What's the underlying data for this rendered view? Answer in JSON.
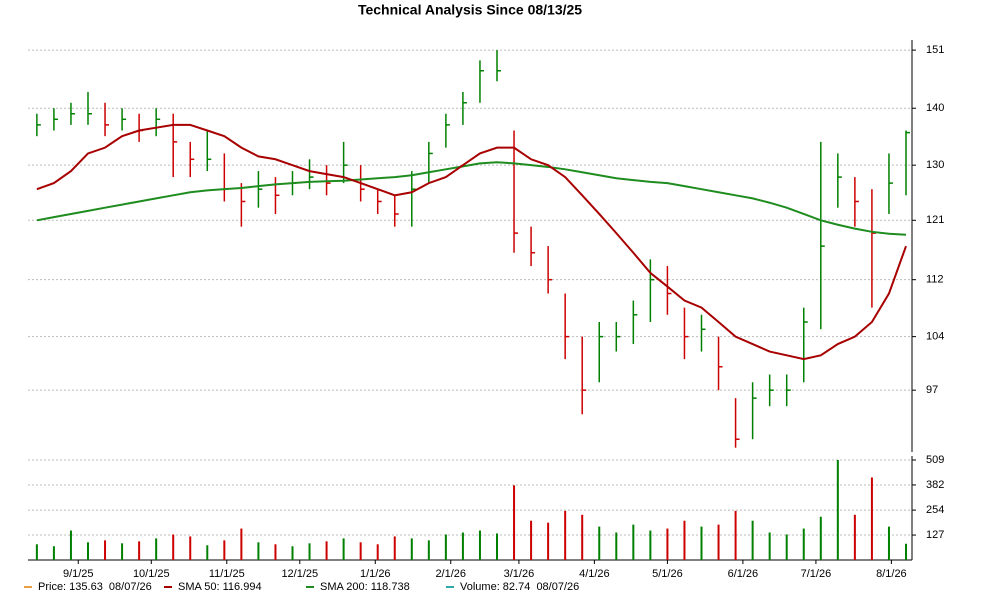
{
  "chart_data": {
    "type": "ohlc",
    "title": "Technical Analysis Since 08/13/25",
    "x": [
      "8/15/25",
      "8/22/25",
      "8/29/25",
      "9/5/25",
      "9/12/25",
      "9/19/25",
      "9/26/25",
      "10/3/25",
      "10/10/25",
      "10/17/25",
      "10/24/25",
      "10/31/25",
      "11/7/25",
      "11/14/25",
      "11/21/25",
      "11/28/25",
      "12/5/25",
      "12/12/25",
      "12/19/25",
      "12/26/25",
      "1/2/26",
      "1/9/26",
      "1/16/26",
      "1/23/26",
      "1/30/26",
      "2/6/26",
      "2/13/26",
      "2/20/26",
      "2/27/26",
      "3/6/26",
      "3/13/26",
      "3/20/26",
      "3/27/26",
      "4/3/26",
      "4/10/26",
      "4/17/26",
      "4/24/26",
      "5/1/26",
      "5/8/26",
      "5/15/26",
      "5/22/26",
      "5/29/26",
      "6/5/26",
      "6/12/26",
      "6/19/26",
      "6/26/26",
      "7/3/26",
      "7/10/26",
      "7/17/26",
      "7/24/26",
      "7/31/26",
      "8/7/26"
    ],
    "high": [
      139,
      140,
      141,
      143,
      141,
      140,
      139,
      140,
      139,
      134,
      136,
      132,
      127,
      129,
      128,
      129,
      131,
      130,
      134,
      130,
      126,
      125,
      129,
      134,
      139,
      143,
      149,
      151,
      136,
      120,
      117,
      110,
      104,
      106,
      106,
      109,
      115,
      114,
      108,
      107,
      104,
      96,
      98,
      99,
      99,
      108,
      134,
      132,
      128,
      126,
      132,
      136
    ],
    "low": [
      135,
      136,
      137,
      137,
      135,
      136,
      134,
      135,
      128,
      128,
      129,
      124,
      120,
      123,
      122,
      125,
      126,
      125,
      127,
      124,
      122,
      120,
      120,
      127,
      133,
      137,
      141,
      145,
      116,
      114,
      110,
      101,
      94,
      98,
      102,
      103,
      106,
      107,
      101,
      102,
      97,
      90,
      91,
      95,
      95,
      98,
      105,
      123,
      120,
      108,
      122,
      125
    ],
    "close": [
      137,
      138,
      139,
      139,
      137,
      138,
      136,
      138,
      134,
      131,
      131,
      126,
      124,
      126,
      125,
      127,
      128,
      127,
      130,
      126,
      124,
      122,
      126,
      132,
      137,
      141,
      147,
      147,
      119,
      116,
      112,
      104,
      97,
      104,
      104,
      107,
      112,
      110,
      104,
      105,
      100,
      91,
      96,
      97,
      97,
      106,
      117,
      128,
      124,
      119,
      127,
      135.63
    ],
    "volume": [
      80,
      70,
      150,
      90,
      100,
      85,
      95,
      110,
      130,
      120,
      75,
      100,
      160,
      90,
      80,
      70,
      85,
      95,
      110,
      90,
      80,
      120,
      110,
      100,
      130,
      140,
      150,
      135,
      380,
      200,
      190,
      250,
      230,
      170,
      140,
      180,
      150,
      160,
      200,
      170,
      180,
      250,
      200,
      140,
      130,
      160,
      220,
      509,
      230,
      420,
      170,
      82.74
    ],
    "sma50": {
      "color": "#a80000",
      "values": [
        126,
        127,
        129,
        132,
        133,
        135,
        136,
        136.5,
        137,
        137,
        136,
        135,
        133,
        131.5,
        131,
        130,
        129,
        128.5,
        128,
        127,
        126,
        125,
        125.5,
        127,
        128,
        130,
        132,
        133,
        133,
        131,
        130,
        128,
        125,
        122,
        119,
        116,
        113,
        111,
        109,
        108,
        106,
        104,
        103,
        102,
        101.5,
        101,
        101.5,
        103,
        104,
        106,
        110,
        116.994
      ]
    },
    "sma200": {
      "color": "#1e8c1e",
      "values": [
        121,
        121.5,
        122,
        122.5,
        123,
        123.5,
        124,
        124.5,
        125,
        125.5,
        125.8,
        126,
        126.2,
        126.5,
        126.8,
        127,
        127.2,
        127.3,
        127.4,
        127.6,
        127.8,
        128,
        128.3,
        128.8,
        129.3,
        129.8,
        130.3,
        130.5,
        130.3,
        130,
        129.7,
        129.3,
        128.8,
        128.3,
        127.8,
        127.5,
        127.2,
        127,
        126.5,
        126,
        125.5,
        125,
        124.5,
        123.8,
        123,
        122,
        121,
        120.3,
        119.7,
        119.2,
        118.9,
        118.738
      ]
    },
    "up_color": "#008000",
    "down_color": "#cc0000",
    "xlim": [
      "8/13/25",
      "8/7/26"
    ],
    "xticks": [
      "9/1/25",
      "10/1/25",
      "11/1/25",
      "12/1/25",
      "1/1/26",
      "2/1/26",
      "3/1/26",
      "4/1/26",
      "5/1/26",
      "6/1/26",
      "7/1/26",
      "8/1/26"
    ],
    "ylim": [
      89.5,
      153
    ],
    "yticks": [
      97,
      104,
      112,
      121,
      130,
      140,
      151
    ],
    "log_scale": true,
    "volume_ylim": [
      0,
      509
    ],
    "volume_ticks": [
      127,
      254,
      382,
      509
    ],
    "grid": true,
    "legend": [
      {
        "label": "Price: 135.63  08/07/26",
        "color": "#e8a040"
      },
      {
        "label": "SMA 50: 116.994",
        "color": "#a80000"
      },
      {
        "label": "SMA 200: 118.738",
        "color": "#1e8c1e"
      },
      {
        "label": "Volume: 82.74  08/07/26",
        "color": "#30a8a8"
      }
    ]
  }
}
